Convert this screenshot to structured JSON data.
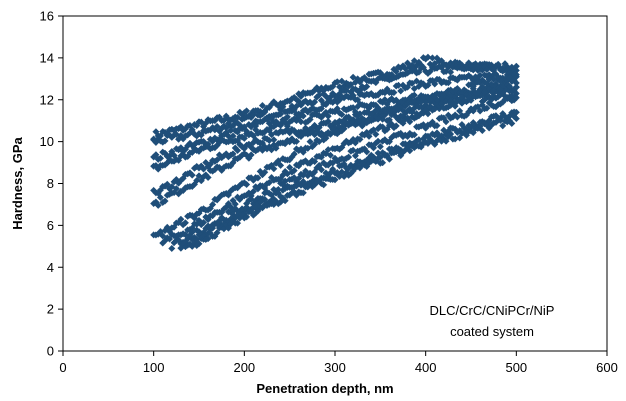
{
  "chart_data": {
    "type": "scatter",
    "title": "",
    "xlabel": "Penetration  depth,  nm",
    "ylabel": "Hardness,  GPa",
    "xlim": [
      0,
      600
    ],
    "ylim": [
      0,
      16
    ],
    "xticks": [
      "0",
      "100",
      "200",
      "300",
      "400",
      "500",
      "600"
    ],
    "yticks": [
      "0",
      "2",
      "4",
      "6",
      "8",
      "10",
      "12",
      "14",
      "16"
    ],
    "grid": false,
    "legend": "none",
    "annotation": [
      "DLC/CrC/CNiPCr/NiP",
      "coated system"
    ],
    "marker_color": "#1f4e79",
    "marker": "diamond",
    "series": [
      {
        "x": [
          100,
          150,
          200,
          250,
          300,
          350,
          400,
          450,
          500
        ],
        "y": [
          10.3,
          10.8,
          11.3,
          12.0,
          12.7,
          13.2,
          13.9,
          13.6,
          13.4
        ]
      },
      {
        "x": [
          100,
          150,
          200,
          250,
          300,
          350,
          400,
          450,
          500
        ],
        "y": [
          10.0,
          10.4,
          11.0,
          11.6,
          12.3,
          12.9,
          13.4,
          13.5,
          13.6
        ]
      },
      {
        "x": [
          100,
          150,
          200,
          250,
          300,
          350,
          400,
          450,
          500
        ],
        "y": [
          9.2,
          9.9,
          10.6,
          11.3,
          11.9,
          12.4,
          12.8,
          13.0,
          13.2
        ]
      },
      {
        "x": [
          100,
          150,
          200,
          250,
          300,
          350,
          400,
          450,
          500
        ],
        "y": [
          8.7,
          9.6,
          10.3,
          10.9,
          11.4,
          11.8,
          12.2,
          12.4,
          12.6
        ]
      },
      {
        "x": [
          100,
          150,
          200,
          250,
          300,
          350,
          400,
          450,
          500
        ],
        "y": [
          7.5,
          8.7,
          9.8,
          10.5,
          10.9,
          11.4,
          11.9,
          12.3,
          12.6
        ]
      },
      {
        "x": [
          100,
          150,
          200,
          250,
          300,
          350,
          400,
          450,
          500
        ],
        "y": [
          7.0,
          8.2,
          9.3,
          10.1,
          10.6,
          11.1,
          11.6,
          12.0,
          12.3
        ]
      },
      {
        "x": [
          100,
          120,
          150,
          200,
          250,
          300,
          350,
          400,
          450,
          500
        ],
        "y": [
          5.4,
          5.9,
          6.6,
          8.0,
          9.3,
          10.5,
          11.3,
          12.0,
          12.6,
          13.1
        ]
      },
      {
        "x": [
          110,
          130,
          150,
          200,
          250,
          300,
          350,
          400,
          450,
          500
        ],
        "y": [
          5.2,
          5.6,
          6.1,
          7.4,
          8.6,
          9.6,
          10.6,
          11.4,
          12.2,
          12.8
        ]
      },
      {
        "x": [
          120,
          150,
          200,
          250,
          300,
          350,
          400,
          450,
          500
        ],
        "y": [
          5.0,
          5.7,
          6.9,
          8.1,
          9.1,
          9.9,
          10.7,
          11.5,
          12.1
        ]
      },
      {
        "x": [
          130,
          150,
          200,
          250,
          300,
          350,
          400,
          450,
          500
        ],
        "y": [
          5.0,
          5.5,
          6.7,
          7.7,
          8.6,
          9.4,
          10.1,
          10.8,
          11.4
        ]
      },
      {
        "x": [
          140,
          160,
          200,
          250,
          300,
          350,
          400,
          450,
          500
        ],
        "y": [
          5.0,
          5.4,
          6.4,
          7.4,
          8.3,
          9.1,
          9.9,
          10.5,
          11.1
        ]
      }
    ]
  }
}
